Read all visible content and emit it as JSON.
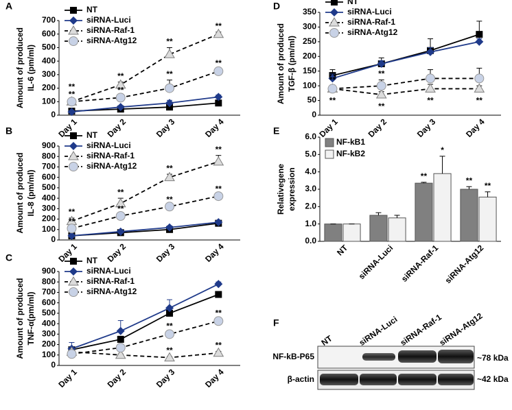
{
  "chart_data": [
    {
      "type": "line",
      "panel_label": "A",
      "ylabel": [
        "Amount of produced",
        "IL-6 (pm/ml)"
      ],
      "legend": "upper left",
      "categories": [
        "Day 1",
        "Day 2",
        "Day 3",
        "Day 4"
      ],
      "ylim": [
        0,
        700
      ],
      "yticks": [
        0,
        100,
        200,
        300,
        400,
        500,
        600,
        700
      ],
      "series": [
        {
          "name": "NT",
          "color": "#000000",
          "marker": "square",
          "dash": false,
          "values": [
            30,
            45,
            60,
            90
          ],
          "errors": [
            5,
            5,
            20,
            15
          ]
        },
        {
          "name": "siRNA-Luci",
          "color": "#1f3a8a",
          "marker": "diamond",
          "dash": false,
          "values": [
            25,
            60,
            90,
            135
          ],
          "errors": [
            5,
            10,
            20,
            15
          ]
        },
        {
          "name": "siRNA-Raf-1",
          "color": "#000000",
          "marker": "triangle",
          "dash": true,
          "values": [
            100,
            225,
            450,
            600
          ],
          "errors": [
            10,
            20,
            50,
            15
          ],
          "sig": [
            "**",
            "**",
            "**",
            "**"
          ],
          "sig_position": "above"
        },
        {
          "name": "siRNA-Atg12",
          "color": "#000000",
          "marker": "circle",
          "dash": true,
          "values": [
            100,
            130,
            200,
            325
          ],
          "errors": [
            10,
            10,
            60,
            15
          ],
          "sig": [
            "**",
            "**",
            "**",
            "**"
          ],
          "sig_position": "above"
        }
      ]
    },
    {
      "type": "line",
      "panel_label": "B",
      "ylabel": [
        "Amount of produced",
        "IL-8 (pm/ml)"
      ],
      "legend": "upper left",
      "categories": [
        "Day 1",
        "Day 2",
        "Day 3",
        "Day 4"
      ],
      "ylim": [
        0,
        900
      ],
      "yticks": [
        0,
        100,
        200,
        300,
        400,
        500,
        600,
        700,
        800,
        900
      ],
      "series": [
        {
          "name": "NT",
          "color": "#000000",
          "marker": "square",
          "dash": false,
          "values": [
            40,
            70,
            100,
            160
          ],
          "errors": [
            5,
            10,
            10,
            15
          ]
        },
        {
          "name": "siRNA-Luci",
          "color": "#1f3a8a",
          "marker": "diamond",
          "dash": false,
          "values": [
            40,
            80,
            120,
            170
          ],
          "errors": [
            5,
            10,
            15,
            15
          ]
        },
        {
          "name": "siRNA-Raf-1",
          "color": "#000000",
          "marker": "triangle",
          "dash": true,
          "values": [
            180,
            350,
            600,
            750
          ],
          "errors": [
            30,
            50,
            30,
            60
          ],
          "sig": [
            "**",
            "**",
            "**",
            "**"
          ],
          "sig_position": "above"
        },
        {
          "name": "siRNA-Atg12",
          "color": "#000000",
          "marker": "circle",
          "dash": true,
          "values": [
            110,
            230,
            320,
            420
          ],
          "errors": [
            10,
            10,
            10,
            10
          ],
          "sig": [
            "**",
            "**",
            "**",
            "**"
          ],
          "sig_position": "above"
        }
      ]
    },
    {
      "type": "line",
      "panel_label": "C",
      "ylabel": [
        "Amount of produced",
        "TNF-α(pm/ml)"
      ],
      "legend": "upper left",
      "categories": [
        "Day 1",
        "Day 2",
        "Day 3",
        "Day 4"
      ],
      "ylim": [
        0,
        900
      ],
      "yticks": [
        0,
        100,
        200,
        300,
        400,
        500,
        600,
        700,
        800,
        900
      ],
      "series": [
        {
          "name": "NT",
          "color": "#000000",
          "marker": "square",
          "dash": false,
          "values": [
            150,
            250,
            500,
            680
          ],
          "errors": [
            20,
            30,
            40,
            20
          ]
        },
        {
          "name": "siRNA-Luci",
          "color": "#1f3a8a",
          "marker": "diamond",
          "dash": false,
          "values": [
            160,
            330,
            550,
            780
          ],
          "errors": [
            60,
            100,
            80,
            20
          ]
        },
        {
          "name": "siRNA-Raf-1",
          "color": "#000000",
          "marker": "triangle",
          "dash": true,
          "values": [
            130,
            100,
            75,
            120
          ],
          "errors": [
            10,
            10,
            10,
            15
          ],
          "sig": [
            null,
            null,
            "**",
            "**"
          ],
          "sig_position": "above"
        },
        {
          "name": "siRNA-Atg12",
          "color": "#000000",
          "marker": "circle",
          "dash": true,
          "values": [
            110,
            170,
            300,
            425
          ],
          "errors": [
            10,
            20,
            20,
            20
          ],
          "sig": [
            null,
            null,
            "**",
            "**"
          ],
          "sig_position": "above"
        }
      ]
    },
    {
      "type": "line",
      "panel_label": "D",
      "ylabel": [
        "Amount of produced",
        "TGF-β (pm/ml)"
      ],
      "legend": "upper left",
      "categories": [
        "Day 1",
        "Day 2",
        "Day 3",
        "Day 4"
      ],
      "ylim": [
        0,
        350
      ],
      "yticks": [
        0,
        50,
        100,
        150,
        200,
        250,
        300,
        350
      ],
      "series": [
        {
          "name": "NT",
          "color": "#000000",
          "marker": "square",
          "dash": false,
          "values": [
            135,
            175,
            220,
            275
          ],
          "errors": [
            20,
            20,
            40,
            45
          ]
        },
        {
          "name": "siRNA-Luci",
          "color": "#1f3a8a",
          "marker": "diamond",
          "dash": false,
          "values": [
            125,
            175,
            215,
            250
          ],
          "errors": [
            15,
            10,
            15,
            10
          ]
        },
        {
          "name": "siRNA-Raf-1",
          "color": "#000000",
          "marker": "triangle",
          "dash": true,
          "values": [
            90,
            70,
            90,
            90
          ],
          "errors": [
            10,
            10,
            15,
            10
          ],
          "sig": [
            "**",
            "**",
            "**",
            "**"
          ],
          "sig_position": "below"
        },
        {
          "name": "siRNA-Atg12",
          "color": "#000000",
          "marker": "circle",
          "dash": true,
          "values": [
            90,
            100,
            125,
            125
          ],
          "errors": [
            10,
            20,
            30,
            35
          ],
          "sig": [
            "**",
            "**",
            null,
            null
          ],
          "sig_position": "above"
        }
      ]
    },
    {
      "type": "bar",
      "panel_label": "E",
      "ylabel": [
        "Relativegene",
        "expression"
      ],
      "legend": "upper left",
      "categories": [
        "NT",
        "siRNA-Luci",
        "siRNA-Raf-1",
        "siRNA-Atg12"
      ],
      "ylim": [
        0,
        6
      ],
      "yticks": [
        {
          "value": 0,
          "label": "0.0"
        },
        {
          "value": 1,
          "label": "1.0"
        },
        {
          "value": 2,
          "label": "2.0"
        },
        {
          "value": 3,
          "label": "3.0"
        },
        {
          "value": 4,
          "label": "4.0"
        },
        {
          "value": 5,
          "label": "5.0"
        },
        {
          "value": 6,
          "label": "6.0"
        }
      ],
      "series": [
        {
          "name": "NF-kB1",
          "color": "#808080",
          "values": [
            1.0,
            1.5,
            3.35,
            3.0
          ],
          "errors": [
            0,
            0.15,
            0.05,
            0.15
          ],
          "sig": [
            null,
            null,
            "**",
            "**"
          ]
        },
        {
          "name": "NF-kB2",
          "color": "#f2f2f2",
          "values": [
            1.0,
            1.35,
            3.9,
            2.55
          ],
          "errors": [
            0,
            0.15,
            1.0,
            0.3
          ],
          "sig": [
            null,
            null,
            "*",
            "**"
          ]
        }
      ]
    }
  ],
  "blot": {
    "panel_label": "F",
    "lanes": [
      "NT",
      "siRNA-Luci",
      "siRNA-Raf-1",
      "siRNA-Atg12"
    ],
    "rows": [
      {
        "name": "NF-kB-P65",
        "size": "~78 kDa"
      },
      {
        "name": "β-actin",
        "size": "~42 kDa"
      }
    ]
  }
}
